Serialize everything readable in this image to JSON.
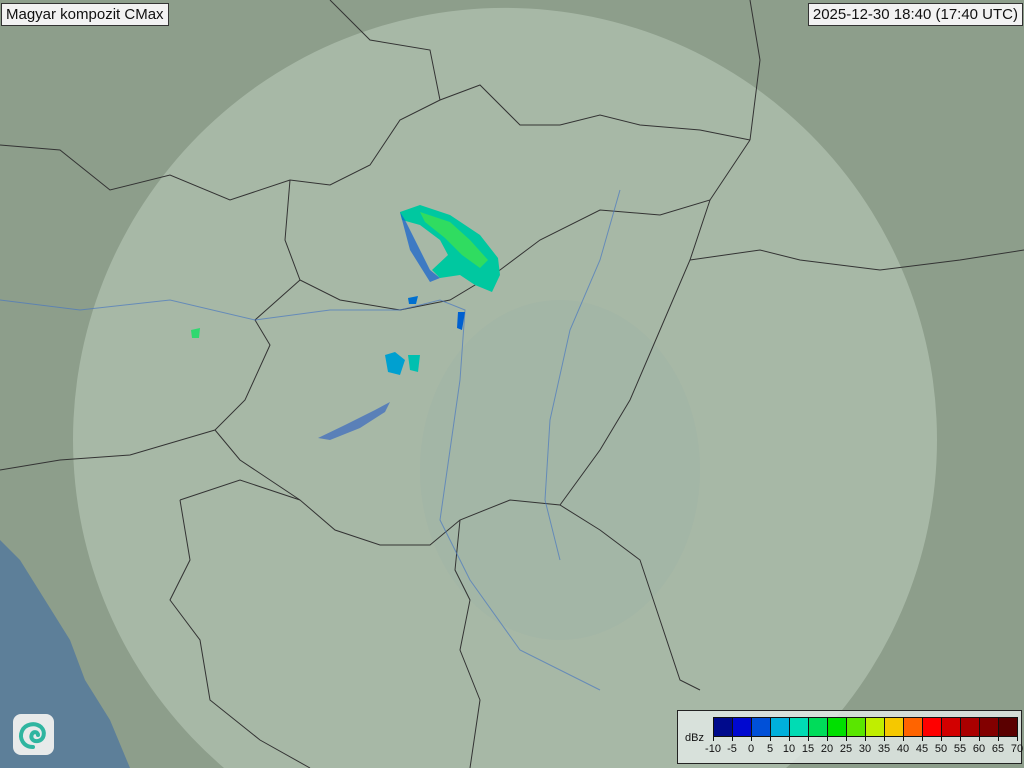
{
  "title": "Magyar kompozit  CMax",
  "timestamp": "2025-12-30 18:40 (17:40 UTC)",
  "logo": {
    "icon": "swirl-logo-icon"
  },
  "legend": {
    "unit": "dBz",
    "labels": [
      "-10",
      "-5",
      "0",
      "5",
      "10",
      "15",
      "20",
      "25",
      "30",
      "35",
      "40",
      "45",
      "50",
      "55",
      "60",
      "65",
      "70"
    ],
    "colors": [
      "#000a8c",
      "#0008d0",
      "#0050d8",
      "#00b0dc",
      "#00dcb4",
      "#00dc5a",
      "#00e000",
      "#5ae600",
      "#c0ee00",
      "#f5c800",
      "#ff6400",
      "#ff0000",
      "#d20000",
      "#aa0000",
      "#820000",
      "#5a0000"
    ]
  },
  "colors": {
    "sea": "#5d7f99",
    "land": "#8fa08e",
    "radar_coverage": "#b4c4b4",
    "border": "#333333",
    "river": "#4a78c0"
  }
}
